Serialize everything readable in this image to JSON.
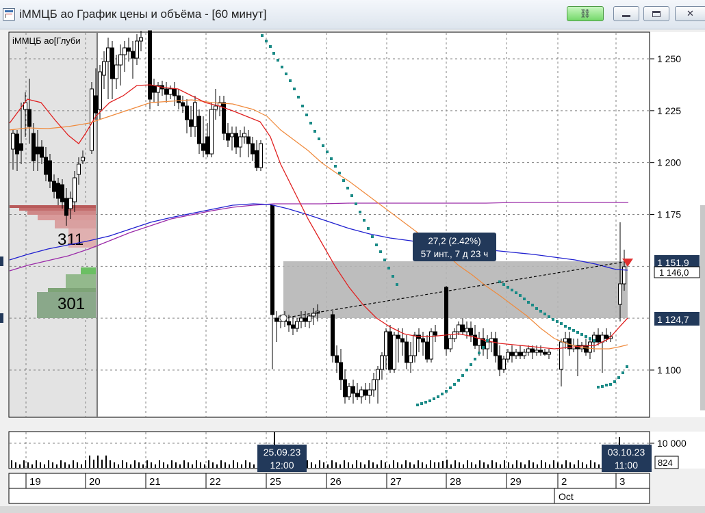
{
  "window": {
    "title": "iММЦБ ао График цены и объёма - [60 минут]",
    "link_icon": "link-icon",
    "minimize_icon": "minimize-icon",
    "maximize_icon": "maximize-icon",
    "close_icon": "close-icon"
  },
  "chart_data": {
    "type": "candlestick",
    "instrument_label": "iММЦБ ао[Глуби",
    "price_axis_ticks": [
      "1 250",
      "1 225",
      "1 200",
      "1 175",
      "1 100"
    ],
    "price_axis_values": [
      1250,
      1225,
      1200,
      1175,
      1100
    ],
    "price_labels": {
      "current": "1 151,9",
      "secondary": "1 146,0",
      "reference": "1 124,7"
    },
    "measurement": {
      "line1": "27,2 (2.42%)",
      "line2": "57 инт., 7 д 23 ч"
    },
    "volume_profile": {
      "upper": "311",
      "lower": "301"
    },
    "volume_axis_ticks": [
      "10 000"
    ],
    "volume_label": "824",
    "x_cursor_labels": [
      {
        "date": "25.09.23",
        "time": "12:00"
      },
      {
        "date": "03.10.23",
        "time": "11:00"
      }
    ],
    "x_axis_ticks": [
      "19",
      "20",
      "21",
      "22",
      "25",
      "26",
      "27",
      "28",
      "29",
      "2",
      "3"
    ],
    "x_axis_month": "Oct",
    "colors": {
      "ma_red": "#e02020",
      "ma_orange": "#f08a3c",
      "ma_blue": "#2020d0",
      "ma_purple": "#9a2aa8",
      "sar_dots": "#1a8a86",
      "measurement_box": "#b4b4b4",
      "label_bg": "#22395a"
    },
    "grid": true
  }
}
